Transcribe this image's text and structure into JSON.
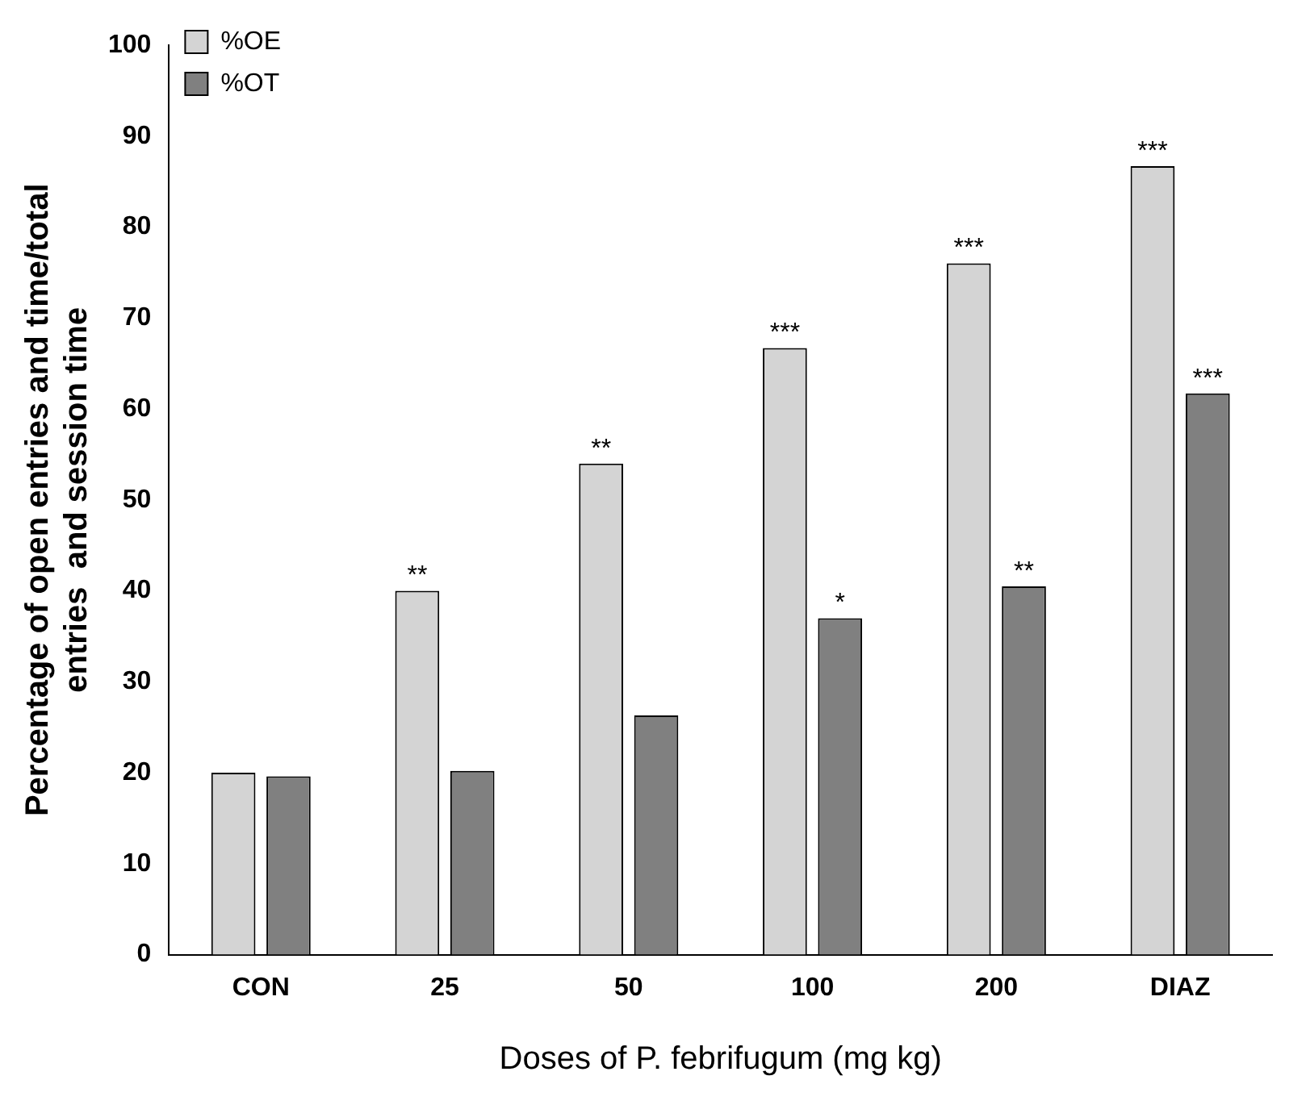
{
  "chart_data": {
    "type": "bar",
    "xlabel": "Doses of P. febrifugum (mg kg)",
    "ylabel": "Percentage of open entries and time/total\nentries  and session time",
    "categories": [
      "CON",
      "25",
      "50",
      "100",
      "200",
      "DIAZ"
    ],
    "series": [
      {
        "name": "%OE",
        "color": "#d4d4d4",
        "values": [
          20,
          40,
          54,
          66.7,
          76,
          86.7
        ]
      },
      {
        "name": "%OT",
        "color": "#808080",
        "values": [
          19.6,
          20.2,
          26.3,
          37,
          40.5,
          61.7
        ]
      }
    ],
    "ylim": [
      0,
      100
    ],
    "yticks": [
      0,
      10,
      20,
      30,
      40,
      50,
      60,
      70,
      80,
      90,
      100
    ],
    "grid": false,
    "legend": "top left",
    "annotations": [
      {
        "text": "**",
        "x": "25",
        "y": 40
      },
      {
        "text": "**",
        "x": "50",
        "y": 54
      },
      {
        "text": "***",
        "x": "100",
        "y": 66.7
      },
      {
        "text": "*",
        "x": "100",
        "y": 37
      },
      {
        "text": "***",
        "x": "200",
        "y": 76
      },
      {
        "text": "**",
        "x": "200",
        "y": 40.5
      },
      {
        "text": "***",
        "x": "DIAZ",
        "y": 86.7
      },
      {
        "text": "***",
        "x": "DIAZ",
        "y": 61.7
      }
    ]
  }
}
